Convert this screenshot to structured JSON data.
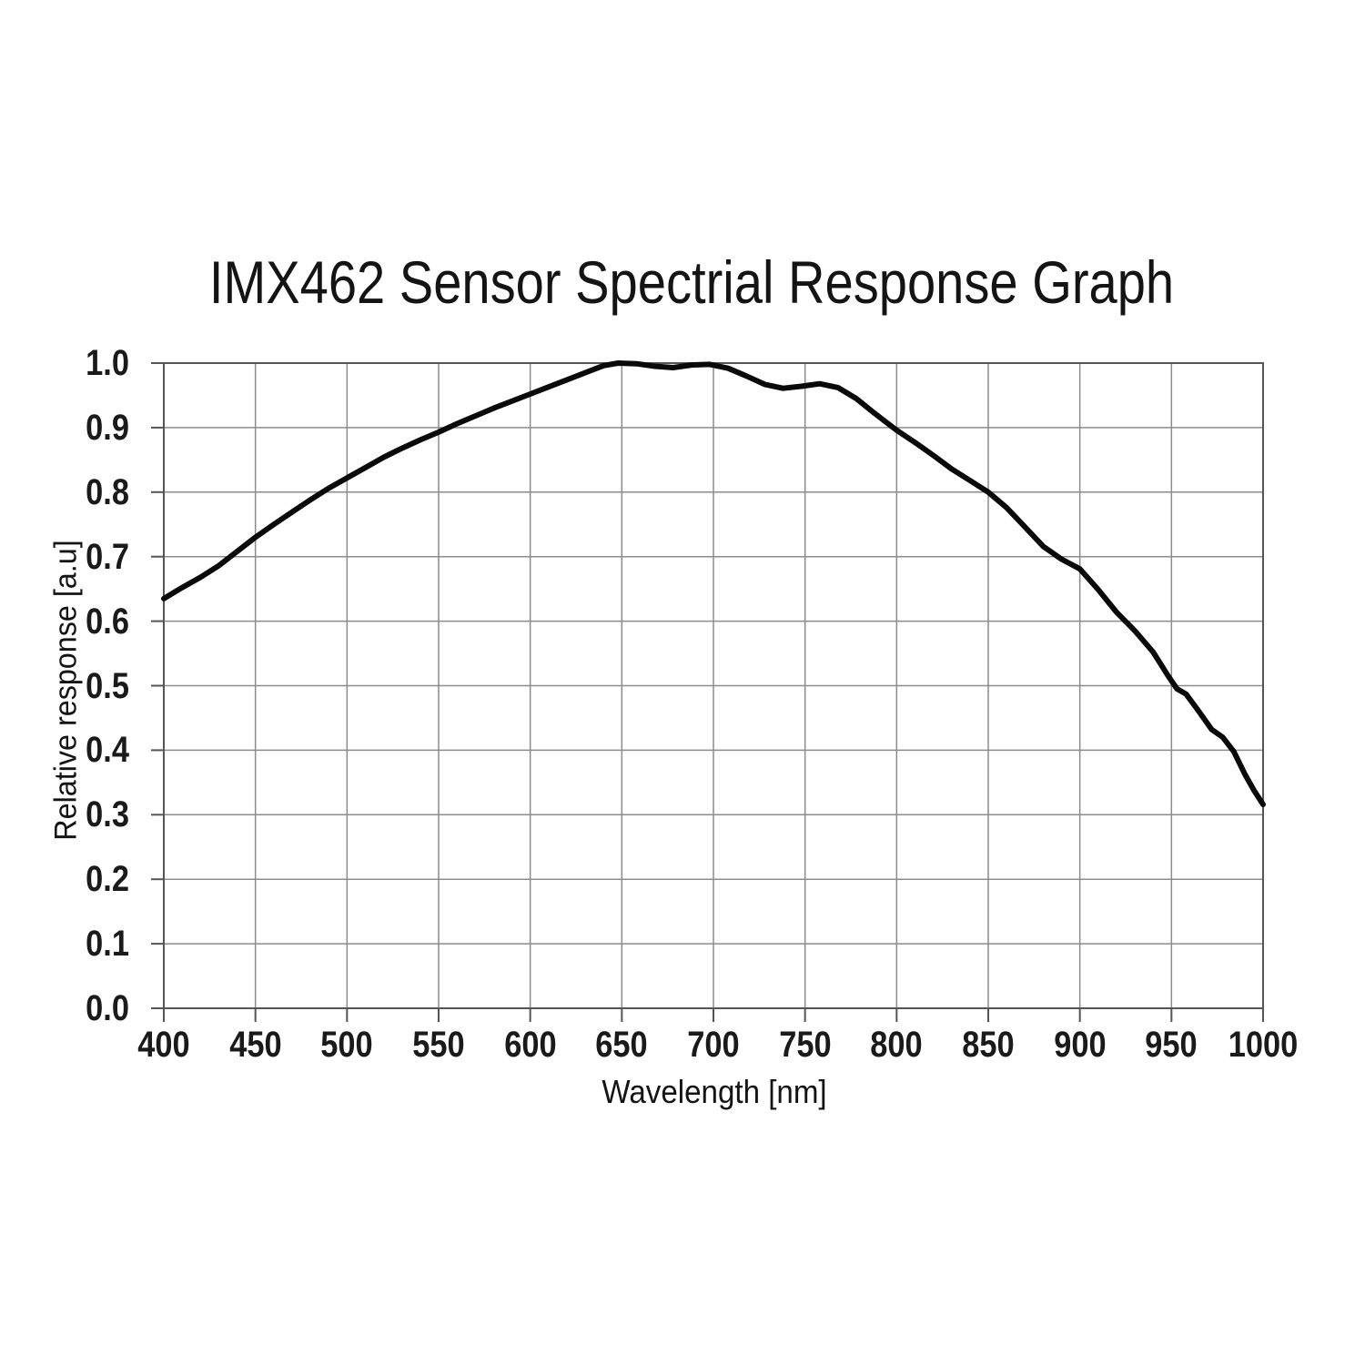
{
  "chart_data": {
    "type": "line",
    "title": "IMX462 Sensor Spectrial Response Graph",
    "xlabel": "Wavelength [nm]",
    "ylabel": "Relative response [a.u]",
    "xlim": [
      400,
      1000
    ],
    "ylim": [
      0.0,
      1.0
    ],
    "x_ticks": [
      "400",
      "450",
      "500",
      "550",
      "600",
      "650",
      "700",
      "750",
      "800",
      "850",
      "900",
      "950",
      "1000"
    ],
    "y_ticks": [
      "1.0",
      "0.9",
      "0.8",
      "0.7",
      "0.6",
      "0.5",
      "0.4",
      "0.3",
      "0.2",
      "0.1",
      "0.0"
    ],
    "grid": true,
    "legend": "none",
    "line_color": "#0a0a0a",
    "grid_color": "#8c8c8c",
    "axis_color": "#555555",
    "series": [
      {
        "name": "relative response",
        "points": [
          [
            400,
            0.635
          ],
          [
            410,
            0.652
          ],
          [
            420,
            0.668
          ],
          [
            430,
            0.686
          ],
          [
            440,
            0.708
          ],
          [
            450,
            0.73
          ],
          [
            460,
            0.75
          ],
          [
            470,
            0.769
          ],
          [
            480,
            0.788
          ],
          [
            490,
            0.806
          ],
          [
            500,
            0.822
          ],
          [
            510,
            0.838
          ],
          [
            520,
            0.854
          ],
          [
            530,
            0.868
          ],
          [
            540,
            0.881
          ],
          [
            550,
            0.893
          ],
          [
            560,
            0.906
          ],
          [
            570,
            0.918
          ],
          [
            580,
            0.93
          ],
          [
            590,
            0.941
          ],
          [
            600,
            0.952
          ],
          [
            610,
            0.963
          ],
          [
            620,
            0.974
          ],
          [
            630,
            0.985
          ],
          [
            640,
            0.996
          ],
          [
            648,
            1.0
          ],
          [
            658,
            0.999
          ],
          [
            668,
            0.995
          ],
          [
            678,
            0.993
          ],
          [
            688,
            0.997
          ],
          [
            698,
            0.998
          ],
          [
            708,
            0.992
          ],
          [
            718,
            0.98
          ],
          [
            728,
            0.967
          ],
          [
            738,
            0.961
          ],
          [
            748,
            0.964
          ],
          [
            758,
            0.968
          ],
          [
            768,
            0.962
          ],
          [
            778,
            0.945
          ],
          [
            788,
            0.922
          ],
          [
            800,
            0.896
          ],
          [
            810,
            0.877
          ],
          [
            820,
            0.857
          ],
          [
            830,
            0.836
          ],
          [
            840,
            0.818
          ],
          [
            850,
            0.8
          ],
          [
            860,
            0.776
          ],
          [
            870,
            0.746
          ],
          [
            880,
            0.716
          ],
          [
            890,
            0.696
          ],
          [
            900,
            0.681
          ],
          [
            910,
            0.649
          ],
          [
            920,
            0.614
          ],
          [
            930,
            0.585
          ],
          [
            940,
            0.552
          ],
          [
            948,
            0.516
          ],
          [
            953,
            0.495
          ],
          [
            958,
            0.487
          ],
          [
            965,
            0.46
          ],
          [
            972,
            0.432
          ],
          [
            978,
            0.42
          ],
          [
            984,
            0.398
          ],
          [
            990,
            0.363
          ],
          [
            995,
            0.338
          ],
          [
            1000,
            0.316
          ]
        ]
      }
    ]
  }
}
